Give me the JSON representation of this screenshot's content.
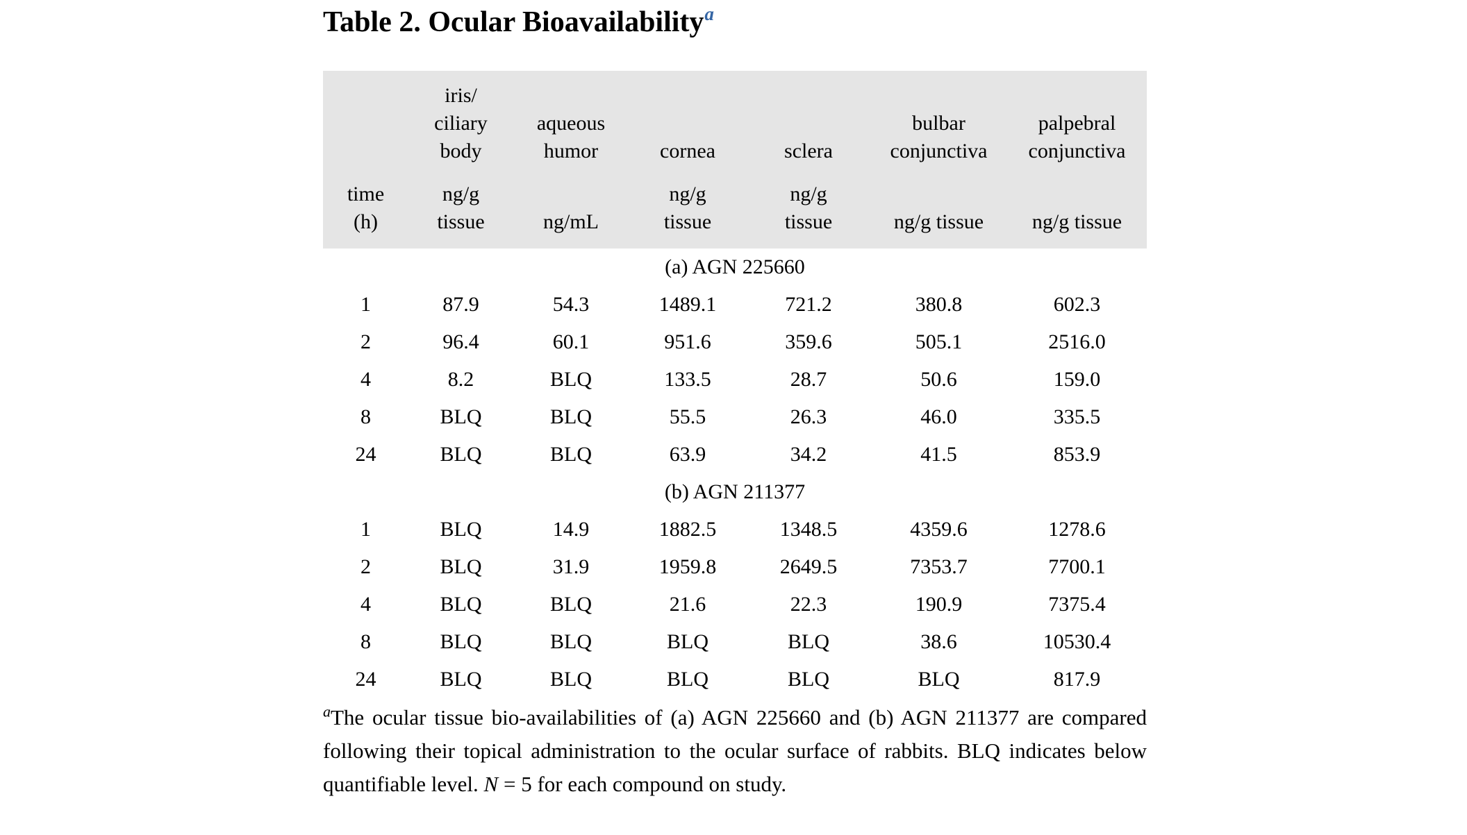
{
  "title": {
    "text": "Table 2. Ocular Bioavailability",
    "superscript": "a"
  },
  "table": {
    "columns": [
      {
        "name": "",
        "unit": "time\n(h)"
      },
      {
        "name": "iris/\nciliary\nbody",
        "unit": "ng/g\ntissue"
      },
      {
        "name": "aqueous\nhumor",
        "unit": "ng/mL"
      },
      {
        "name": "cornea",
        "unit": "ng/g\ntissue"
      },
      {
        "name": "sclera",
        "unit": "ng/g\ntissue"
      },
      {
        "name": "bulbar\nconjunctiva",
        "unit": "ng/g tissue"
      },
      {
        "name": "palpebral\nconjunctiva",
        "unit": "ng/g tissue"
      }
    ],
    "sections": [
      {
        "label": "(a) AGN 225660",
        "rows": [
          [
            "1",
            "87.9",
            "54.3",
            "1489.1",
            "721.2",
            "380.8",
            "602.3"
          ],
          [
            "2",
            "96.4",
            "60.1",
            "951.6",
            "359.6",
            "505.1",
            "2516.0"
          ],
          [
            "4",
            "8.2",
            "BLQ",
            "133.5",
            "28.7",
            "50.6",
            "159.0"
          ],
          [
            "8",
            "BLQ",
            "BLQ",
            "55.5",
            "26.3",
            "46.0",
            "335.5"
          ],
          [
            "24",
            "BLQ",
            "BLQ",
            "63.9",
            "34.2",
            "41.5",
            "853.9"
          ]
        ]
      },
      {
        "label": "(b) AGN 211377",
        "rows": [
          [
            "1",
            "BLQ",
            "14.9",
            "1882.5",
            "1348.5",
            "4359.6",
            "1278.6"
          ],
          [
            "2",
            "BLQ",
            "31.9",
            "1959.8",
            "2649.5",
            "7353.7",
            "7700.1"
          ],
          [
            "4",
            "BLQ",
            "BLQ",
            "21.6",
            "22.3",
            "190.9",
            "7375.4"
          ],
          [
            "8",
            "BLQ",
            "BLQ",
            "BLQ",
            "BLQ",
            "38.6",
            "10530.4"
          ],
          [
            "24",
            "BLQ",
            "BLQ",
            "BLQ",
            "BLQ",
            "BLQ",
            "817.9"
          ]
        ]
      }
    ]
  },
  "footnote": {
    "marker": "a",
    "text": "The ocular tissue bio-availabilities of (a) AGN 225660 and (b) AGN 211377 are compared following their topical administration to the ocular surface of rabbits. BLQ indicates below quantifiable level. ",
    "n_label": "N",
    "tail": " = 5 for each compound on study."
  },
  "chart_data": {
    "type": "table",
    "title": "Table 2. Ocular Bioavailability",
    "columns": [
      "time (h)",
      "iris/ciliary body ng/g tissue",
      "aqueous humor ng/mL",
      "cornea ng/g tissue",
      "sclera ng/g tissue",
      "bulbar conjunctiva ng/g tissue",
      "palpebral conjunctiva ng/g tissue"
    ],
    "sections": [
      {
        "label": "(a) AGN 225660",
        "rows": [
          [
            "1",
            "87.9",
            "54.3",
            "1489.1",
            "721.2",
            "380.8",
            "602.3"
          ],
          [
            "2",
            "96.4",
            "60.1",
            "951.6",
            "359.6",
            "505.1",
            "2516.0"
          ],
          [
            "4",
            "8.2",
            "BLQ",
            "133.5",
            "28.7",
            "50.6",
            "159.0"
          ],
          [
            "8",
            "BLQ",
            "BLQ",
            "55.5",
            "26.3",
            "46.0",
            "335.5"
          ],
          [
            "24",
            "BLQ",
            "BLQ",
            "63.9",
            "34.2",
            "41.5",
            "853.9"
          ]
        ]
      },
      {
        "label": "(b) AGN 211377",
        "rows": [
          [
            "1",
            "BLQ",
            "14.9",
            "1882.5",
            "1348.5",
            "4359.6",
            "1278.6"
          ],
          [
            "2",
            "BLQ",
            "31.9",
            "1959.8",
            "2649.5",
            "7353.7",
            "7700.1"
          ],
          [
            "4",
            "BLQ",
            "BLQ",
            "21.6",
            "22.3",
            "190.9",
            "7375.4"
          ],
          [
            "8",
            "BLQ",
            "BLQ",
            "BLQ",
            "BLQ",
            "38.6",
            "10530.4"
          ],
          [
            "24",
            "BLQ",
            "BLQ",
            "BLQ",
            "BLQ",
            "BLQ",
            "817.9"
          ]
        ]
      }
    ]
  },
  "colors": {
    "header_band": "#e5e5e5",
    "superscript_blue": "#3465a4",
    "text": "#000000",
    "background": "#ffffff"
  }
}
